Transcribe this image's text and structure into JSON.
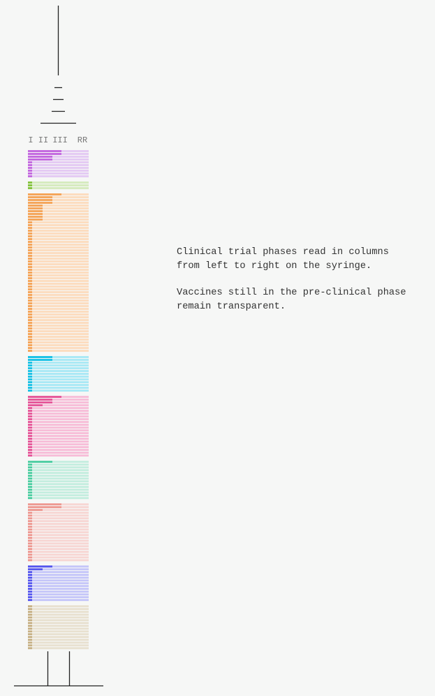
{
  "columns": [
    "I",
    "II",
    "III",
    "RR"
  ],
  "groups": [
    {
      "color": "#c46be0",
      "track_color": "#e4cbf3",
      "phases": [
        3,
        3,
        2,
        2,
        0,
        0,
        0,
        0,
        0,
        0
      ]
    },
    {
      "color": "#86c440",
      "track_color": "#d6ebbf",
      "phases": [
        0,
        0,
        0
      ]
    },
    {
      "color": "#f5a65b",
      "track_color": "#fcddc0",
      "phases": [
        3,
        2,
        2,
        2,
        1,
        1,
        1,
        1,
        1,
        1,
        0,
        0,
        0,
        0,
        0,
        0,
        0,
        0,
        0,
        0,
        0,
        0,
        0,
        0,
        0,
        0,
        0,
        0,
        0,
        0,
        0,
        0,
        0,
        0,
        0,
        0,
        0,
        0,
        0,
        0,
        0,
        0,
        0,
        0,
        0,
        0,
        0,
        0,
        0,
        0,
        0,
        0,
        0,
        0,
        0,
        0,
        0
      ]
    },
    {
      "color": "#1ec3e6",
      "track_color": "#abe9f5",
      "phases": [
        2,
        2,
        0,
        0,
        0,
        0,
        0,
        0,
        0,
        0,
        0,
        0,
        0
      ]
    },
    {
      "color": "#e65a9b",
      "track_color": "#f7bfd9",
      "phases": [
        3,
        2,
        2,
        1,
        0,
        0,
        0,
        0,
        0,
        0,
        0,
        0,
        0,
        0,
        0,
        0,
        0,
        0,
        0,
        0,
        0,
        0
      ]
    },
    {
      "color": "#52cfa4",
      "track_color": "#c6eee0",
      "phases": [
        2,
        0,
        0,
        0,
        0,
        0,
        0,
        0,
        0,
        0,
        0,
        0,
        0,
        0
      ]
    },
    {
      "color": "#ee9c95",
      "track_color": "#f7d8d5",
      "phases": [
        3,
        3,
        1,
        0,
        0,
        0,
        0,
        0,
        0,
        0,
        0,
        0,
        0,
        0,
        0,
        0,
        0,
        0,
        0,
        0,
        0
      ]
    },
    {
      "color": "#5b5cef",
      "track_color": "#c7c8f9",
      "phases": [
        2,
        1,
        0,
        0,
        0,
        0,
        0,
        0,
        0,
        0,
        0,
        0,
        0
      ]
    },
    {
      "color": "#c9b48a",
      "track_color": "#e9e2d2",
      "phases": [
        0,
        0,
        0,
        0,
        0,
        0,
        0,
        0,
        0,
        0,
        0,
        0,
        0,
        0,
        0,
        0
      ]
    }
  ],
  "annotation": [
    [
      "Clinical trial phases read in columns",
      "from left to right on the syringe."
    ],
    [
      "Vaccines still in the pre-clinical phase",
      "remain transparent."
    ]
  ]
}
